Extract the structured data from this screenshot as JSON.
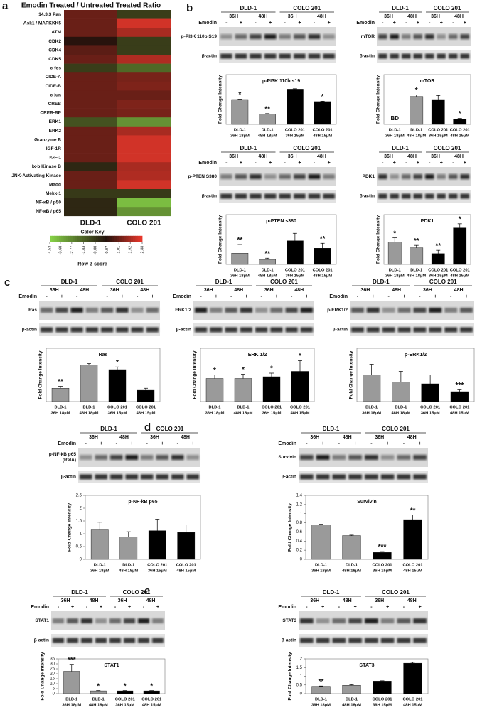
{
  "panel_labels": [
    "a",
    "b",
    "c",
    "d",
    "e"
  ],
  "heatmap": {
    "title": "Emodin Treated / Untreated Treated Ratio",
    "rows": [
      "14.3.3 Pan",
      "Ask1 / MAPKKK5",
      "ATM",
      "CDK2",
      "CDK4",
      "CDK5",
      "c-fos",
      "CIDE-A",
      "CIDE-B",
      "c-jun",
      "CREB",
      "CREB-BP",
      "ERK1",
      "ERK2",
      "Granzyme B",
      "IGF-1R",
      "IGF-1",
      "Ix-b Kinase B",
      "JNK-Activating Kinase",
      "Madd",
      "Mekk-1",
      "NF-κB / p50",
      "NF-κB / p65"
    ],
    "columns": [
      "DLD-1",
      "COLO 201"
    ],
    "values": [
      [
        1.0,
        -1.0
      ],
      [
        1.0,
        2.5
      ],
      [
        1.0,
        1.9
      ],
      [
        0.07,
        -1.0
      ],
      [
        0.8,
        -1.0
      ],
      [
        1.0,
        2.0
      ],
      [
        -1.0,
        -2.0
      ],
      [
        1.0,
        1.2
      ],
      [
        1.0,
        1.3
      ],
      [
        1.0,
        1.0
      ],
      [
        1.0,
        1.3
      ],
      [
        1.0,
        1.2
      ],
      [
        -1.5,
        -3.0
      ],
      [
        1.0,
        1.9
      ],
      [
        1.0,
        2.5
      ],
      [
        1.0,
        2.5
      ],
      [
        1.0,
        2.5
      ],
      [
        -0.5,
        1.9
      ],
      [
        1.0,
        2.0
      ],
      [
        1.0,
        2.5
      ],
      [
        -0.9,
        -0.9
      ],
      [
        -0.5,
        -4.0
      ],
      [
        -0.5,
        -3.0
      ]
    ],
    "color_key": {
      "title": "Color Key",
      "ticks": [
        -4.53,
        -3.68,
        -2.77,
        -1.83,
        -0.88,
        0.07,
        1.01,
        1.92,
        2.88
      ],
      "label": "Row Z score"
    }
  },
  "blots": [
    {
      "groups": [
        "DLD-1",
        "COLO 201"
      ],
      "times": [
        "36H",
        "48H",
        "36H",
        "48H"
      ],
      "treatment_label": "Emodin",
      "treatment": [
        "-",
        "+",
        "-",
        "+",
        "-",
        "+",
        "-",
        "+"
      ],
      "proteins": [
        [
          "p-PI3K 110b S19"
        ],
        [
          "β-actin"
        ]
      ]
    },
    {
      "groups": [
        "DLD-1",
        "COLO 201"
      ],
      "times": [
        "36H",
        "48H",
        "36H",
        "48H"
      ],
      "treatment_label": "Emodin",
      "treatment": [
        "-",
        "+",
        "-",
        "+",
        "-",
        "+",
        "-",
        "+"
      ],
      "proteins": [
        [
          "mTOR"
        ],
        [
          "β-actin"
        ]
      ]
    },
    {
      "groups": [
        "DLD-1",
        "COLO 201"
      ],
      "times": [
        "36H",
        "48H",
        "36H",
        "48H"
      ],
      "treatment_label": "Emodin",
      "treatment": [
        "-",
        "+",
        "-",
        "+",
        "-",
        "+",
        "-",
        "+"
      ],
      "proteins": [
        [
          "p-PTEN S380"
        ],
        [
          "β-actin"
        ]
      ]
    },
    {
      "groups": [
        "DLD-1",
        "COLO 201"
      ],
      "times": [
        "36H",
        "48H",
        "36H",
        "48H"
      ],
      "treatment": [
        "-",
        "+",
        "-",
        "+",
        "-",
        "+",
        "-",
        "+"
      ],
      "proteins": [
        [
          "PDK1"
        ],
        [
          "β-actin"
        ]
      ]
    },
    {
      "groups": [
        "DLD-1",
        "COLO 201"
      ],
      "times": [
        "36H",
        "48H",
        "36H",
        "48H"
      ],
      "treatment_label": "Emodin",
      "treatment": [
        "-",
        "+",
        "-",
        "+",
        "-",
        "+",
        "-",
        "+"
      ],
      "proteins": [
        [
          "Ras"
        ],
        [
          "β-actin"
        ]
      ]
    },
    {
      "groups": [
        "DLD-1",
        "COLO 201"
      ],
      "times": [
        "36H",
        "48H",
        "36H",
        "48H"
      ],
      "treatment_label": "Emodin",
      "treatment": [
        "-",
        "+",
        "-",
        "+",
        "-",
        "+",
        "-",
        "+"
      ],
      "proteins": [
        [
          "ERK1/2"
        ],
        [
          "β-actin"
        ]
      ]
    },
    {
      "groups": [
        "DLD-1",
        "COLO 201"
      ],
      "times": [
        "36H",
        "48H",
        "36H",
        "48H"
      ],
      "treatment_label": "Emodin",
      "treatment": [
        "-",
        "+",
        "-",
        "+",
        "-",
        "+",
        "-",
        "+"
      ],
      "proteins": [
        [
          "p-ERK1/2"
        ],
        [
          "β-actin"
        ]
      ]
    },
    {
      "groups": [
        "DLD-1",
        "COLO 201"
      ],
      "times": [
        "36H",
        "48H",
        "36H",
        "48H"
      ],
      "treatment_label": "Emodin",
      "treatment": [
        "-",
        "+",
        "-",
        "+",
        "-",
        "+",
        "-",
        "+"
      ],
      "proteins": [
        [
          "p-NF-kB p65",
          "(RelA)"
        ],
        [
          "β-actin"
        ]
      ]
    },
    {
      "groups": [
        "DLD-1",
        "COLO 201"
      ],
      "times": [
        "36H",
        "48H",
        "36H",
        "48H"
      ],
      "treatment_label": "Emodin",
      "treatment": [
        "-",
        "+",
        "-",
        "+",
        "-",
        "+",
        "-",
        "+"
      ],
      "proteins": [
        [
          "Survivin"
        ],
        [
          "β-actin"
        ]
      ]
    },
    {
      "groups": [
        "DLD-1",
        "COLO 201"
      ],
      "times": [
        "36H",
        "48H",
        "36H",
        "48H"
      ],
      "treatment_label": "Emodin",
      "treatment": [
        "-",
        "+",
        "-",
        "+",
        "-",
        "+",
        "-",
        "+"
      ],
      "proteins": [
        [
          "STAT1"
        ],
        [
          "β-actin"
        ]
      ]
    },
    {
      "groups": [
        "DLD-1",
        "COLO 201"
      ],
      "times": [
        "36H",
        "48H",
        "36H",
        "48H"
      ],
      "treatment_label": "Emodin",
      "treatment": [
        "-",
        "+",
        "-",
        "+",
        "-",
        "+",
        "-",
        "+"
      ],
      "proteins": [
        [
          "STAT3"
        ],
        [
          "β-actin"
        ]
      ]
    }
  ],
  "charts": [
    {
      "type": "bar",
      "title": "p-PI3K 110b s19",
      "y_label": "Fold Change Intensity",
      "ylim": [
        0,
        1.2
      ],
      "yticks": [],
      "categories": [
        [
          "DLD-1",
          "36H 18µM"
        ],
        [
          "DLD-1",
          "48H 18µM"
        ],
        [
          "COLO 201",
          "36H 15µM"
        ],
        [
          "COLO 201",
          "48H 15µM"
        ]
      ],
      "values": [
        0.6,
        0.25,
        0.85,
        0.55
      ],
      "errors": [
        0.01,
        0.01,
        0.01,
        0.01
      ],
      "stars": [
        "*",
        "**",
        null,
        "*"
      ],
      "colors": [
        "#9a9a9a",
        "#9a9a9a",
        "#000000",
        "#000000"
      ]
    },
    {
      "type": "bar",
      "title": "mTOR",
      "y_label": "Fold Change Intensity",
      "ylim": [
        0,
        2.5
      ],
      "yticks": [],
      "categories": [
        [
          "DLD-1",
          "36H 18µM"
        ],
        [
          "DLD-1",
          "48H 18µM"
        ],
        [
          "COLO 201",
          "36H 15µM"
        ],
        [
          "COLO 201",
          "48H 15µM"
        ]
      ],
      "values": [
        null,
        1.4,
        1.25,
        0.25
      ],
      "value_labels": [
        "BD",
        null,
        null,
        null
      ],
      "errors": [
        null,
        0.08,
        0.2,
        0.05
      ],
      "stars": [
        null,
        "*",
        null,
        "*"
      ],
      "colors": [
        "#9a9a9a",
        "#9a9a9a",
        "#000000",
        "#000000"
      ]
    },
    {
      "type": "bar",
      "title": "p-PTEN s380",
      "y_label": "Fold Change Intensity",
      "ylim": [
        0,
        2
      ],
      "yticks": [],
      "categories": [
        [
          "DLD-1",
          "36H 18µM"
        ],
        [
          "DLD-1",
          "48H 18µM"
        ],
        [
          "COLO 201",
          "36H 15µM"
        ],
        [
          "COLO 201",
          "48H 15µM"
        ]
      ],
      "values": [
        0.45,
        0.2,
        0.95,
        0.65
      ],
      "errors": [
        0.35,
        0.05,
        0.3,
        0.2
      ],
      "stars": [
        "**",
        "**",
        null,
        "**"
      ],
      "colors": [
        "#9a9a9a",
        "#9a9a9a",
        "#000000",
        "#000000"
      ]
    },
    {
      "type": "bar",
      "title": "PDK1",
      "y_label": "Fold Change Intensity",
      "ylim": [
        0,
        0.6
      ],
      "yticks": [],
      "categories": [
        [
          "DLD-1",
          "36H 18µM"
        ],
        [
          "DLD-1",
          "48H 18µM"
        ],
        [
          "COLO 201",
          "36H 15µM"
        ],
        [
          "COLO 201",
          "48H 15µM"
        ]
      ],
      "values": [
        0.27,
        0.2,
        0.13,
        0.44
      ],
      "errors": [
        0.05,
        0.03,
        0.04,
        0.05
      ],
      "stars": [
        "*",
        "**",
        "**",
        "*"
      ],
      "colors": [
        "#9a9a9a",
        "#9a9a9a",
        "#000000",
        "#000000"
      ]
    },
    {
      "type": "bar",
      "title": "Ras",
      "y_label": "Fold Change Intensity",
      "ylim": [
        0,
        0.8
      ],
      "yticks": [],
      "categories": [
        [
          "DLD-1",
          "36H 18µM"
        ],
        [
          "DLD-1",
          "48H 18µM"
        ],
        [
          "COLO 201",
          "36H 15µM"
        ],
        [
          "COLO 201",
          "48H 15µM"
        ]
      ],
      "values": [
        0.2,
        0.55,
        0.48,
        0.17
      ],
      "errors": [
        0.03,
        0.02,
        0.04,
        0.03
      ],
      "stars": [
        "**",
        null,
        "*",
        null
      ],
      "colors": [
        "#9a9a9a",
        "#9a9a9a",
        "#000000",
        "#000000"
      ]
    },
    {
      "type": "bar",
      "title": "ERK 1/2",
      "y_label": "Fold Change Intensity",
      "ylim": [
        0,
        1.5
      ],
      "yticks": [],
      "categories": [
        [
          "DLD-1",
          "36H 18µM"
        ],
        [
          "DLD-1",
          "48H 18µM"
        ],
        [
          "COLO 201",
          "36H 15µM"
        ],
        [
          "COLO 201",
          "48H 15µM"
        ]
      ],
      "values": [
        0.65,
        0.65,
        0.7,
        0.85
      ],
      "errors": [
        0.1,
        0.12,
        0.1,
        0.3
      ],
      "stars": [
        "*",
        "*",
        "*",
        "*"
      ],
      "colors": [
        "#9a9a9a",
        "#9a9a9a",
        "#000000",
        "#000000"
      ]
    },
    {
      "type": "bar",
      "title": "p-ERK1/2",
      "y_label": "Fold Change Intensity",
      "ylim": [
        0,
        1.5
      ],
      "yticks": [],
      "categories": [
        [
          "DLD-1",
          "36H 18µM"
        ],
        [
          "DLD-1",
          "48H 18µM"
        ],
        [
          "COLO 201",
          "36H 15µM"
        ],
        [
          "COLO 201",
          "48H 15µM"
        ]
      ],
      "values": [
        0.75,
        0.55,
        0.5,
        0.28
      ],
      "errors": [
        0.3,
        0.3,
        0.25,
        0.05
      ],
      "stars": [
        null,
        null,
        null,
        "***"
      ],
      "colors": [
        "#9a9a9a",
        "#9a9a9a",
        "#000000",
        "#000000"
      ]
    },
    {
      "type": "bar",
      "title": "p-NF-kB p65",
      "y_label": "Fold Change Intensity",
      "ylim": [
        0,
        2.5
      ],
      "yticks": [
        0,
        0.5,
        1,
        1.5,
        2,
        2.5
      ],
      "categories": [
        [
          "DLD-1",
          "36H 18µM"
        ],
        [
          "DLD-1",
          "48H 18µM"
        ],
        [
          "COLO 201",
          "36H 15µM"
        ],
        [
          "COLO 201",
          "48H 15µM"
        ]
      ],
      "values": [
        1.15,
        0.88,
        1.12,
        1.05
      ],
      "errors": [
        0.3,
        0.2,
        0.45,
        0.3
      ],
      "stars": [
        null,
        null,
        null,
        null
      ],
      "colors": [
        "#9a9a9a",
        "#9a9a9a",
        "#000000",
        "#000000"
      ]
    },
    {
      "type": "bar",
      "title": "Survivin",
      "y_label": "Fold Change Intensity",
      "ylim": [
        0,
        1.4
      ],
      "yticks": [
        0,
        0.2,
        0.4,
        0.6,
        0.8,
        1,
        1.2,
        1.4
      ],
      "categories": [
        [
          "DLD-1",
          "36H 18µM"
        ],
        [
          "DLD-1",
          "48H 18µM"
        ],
        [
          "COLO 201",
          "36H 15µM"
        ],
        [
          "COLO 201",
          "48H 15µM"
        ]
      ],
      "values": [
        0.75,
        0.52,
        0.15,
        0.87
      ],
      "errors": [
        0.02,
        0.01,
        0.02,
        0.1
      ],
      "stars": [
        null,
        null,
        "***",
        "**"
      ],
      "colors": [
        "#9a9a9a",
        "#9a9a9a",
        "#000000",
        "#000000"
      ]
    },
    {
      "type": "bar",
      "title": "STAT1",
      "y_label": "Fold Change Intensity",
      "ylim": [
        0,
        35
      ],
      "yticks": [
        0,
        5,
        10,
        15,
        20,
        25,
        30,
        35
      ],
      "categories": [
        [
          "DLD-1",
          "36H 18µM"
        ],
        [
          "DLD-1",
          "48H 18µM"
        ],
        [
          "COLO 201",
          "36H 15µM"
        ],
        [
          "COLO 201",
          "48H 15µM"
        ]
      ],
      "values": [
        22.5,
        2.8,
        2.8,
        2.8
      ],
      "errors": [
        7,
        0.3,
        0.3,
        0.3
      ],
      "stars": [
        "***",
        "*",
        "*",
        "*"
      ],
      "colors": [
        "#9a9a9a",
        "#9a9a9a",
        "#000000",
        "#000000"
      ]
    },
    {
      "type": "bar",
      "title": "STAT3",
      "y_label": "Fold Change Intensity",
      "ylim": [
        0,
        2
      ],
      "yticks": [
        0,
        0.5,
        1,
        1.5,
        2
      ],
      "categories": [
        [
          "DLD-1",
          "36H 18µM"
        ],
        [
          "DLD-1",
          "48H 18µM"
        ],
        [
          "COLO 201",
          "36H 15µM"
        ],
        [
          "COLO 201",
          "48H 15µM"
        ]
      ],
      "values": [
        0.42,
        0.48,
        0.72,
        1.75
      ],
      "errors": [
        0.02,
        0.03,
        0.02,
        0.05
      ],
      "stars": [
        "**",
        null,
        null,
        null
      ],
      "colors": [
        "#9a9a9a",
        "#9a9a9a",
        "#000000",
        "#000000"
      ]
    }
  ]
}
